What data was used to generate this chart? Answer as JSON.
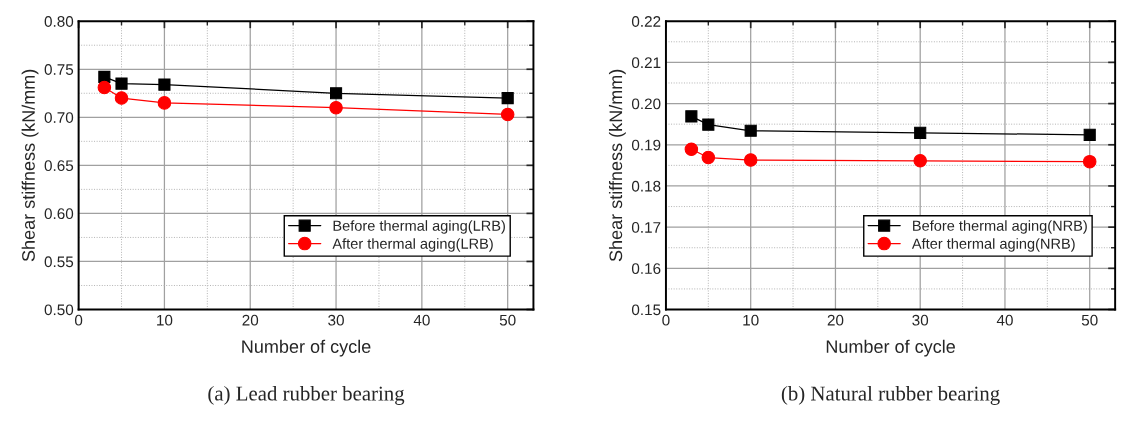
{
  "chart_data": [
    {
      "type": "line",
      "xlabel": "Number of cycle",
      "ylabel": "Shear stiffness (kN/mm)",
      "x": [
        3,
        5,
        10,
        30,
        50
      ],
      "series": [
        {
          "name": "Before thermal aging(LRB)",
          "color": "#000000",
          "marker": "square",
          "values": [
            0.742,
            0.735,
            0.734,
            0.725,
            0.72
          ]
        },
        {
          "name": "After thermal aging(LRB)",
          "color": "#ff0000",
          "marker": "circle",
          "values": [
            0.731,
            0.72,
            0.715,
            0.71,
            0.703
          ]
        }
      ],
      "xlim": [
        0,
        53
      ],
      "xticks": [
        0,
        10,
        20,
        30,
        40,
        50
      ],
      "ylim": [
        0.5,
        0.8
      ],
      "yticks": [
        {
          "value": 0.5,
          "label": "0.50"
        },
        {
          "value": 0.55,
          "label": "0.55"
        },
        {
          "value": 0.6,
          "label": "0.60"
        },
        {
          "value": 0.65,
          "label": "0.65"
        },
        {
          "value": 0.7,
          "label": "0.70"
        },
        {
          "value": 0.75,
          "label": "0.75"
        },
        {
          "value": 0.8,
          "label": "0.80"
        }
      ],
      "grid": true,
      "legend": "bottom right",
      "line_style": "solid",
      "annotations": [
        "(a) Lead rubber bearing"
      ]
    },
    {
      "type": "line",
      "xlabel": "Number of cycle",
      "ylabel": "Shear stiffness (kN/mm)",
      "x": [
        3,
        5,
        10,
        30,
        50
      ],
      "series": [
        {
          "name": "Before thermal aging(NRB)",
          "color": "#000000",
          "marker": "square",
          "values": [
            0.1969,
            0.1949,
            0.1934,
            0.1929,
            0.1924
          ]
        },
        {
          "name": "After thermal aging(NRB)",
          "color": "#ff0000",
          "marker": "circle",
          "values": [
            0.1889,
            0.1869,
            0.1863,
            0.1861,
            0.1859
          ]
        }
      ],
      "xlim": [
        0,
        53
      ],
      "xticks": [
        0,
        10,
        20,
        30,
        40,
        50
      ],
      "ylim": [
        0.15,
        0.22
      ],
      "yticks": [
        {
          "value": 0.15,
          "label": "0.15"
        },
        {
          "value": 0.16,
          "label": "0.16"
        },
        {
          "value": 0.17,
          "label": "0.17"
        },
        {
          "value": 0.18,
          "label": "0.18"
        },
        {
          "value": 0.19,
          "label": "0.19"
        },
        {
          "value": 0.2,
          "label": "0.20"
        },
        {
          "value": 0.21,
          "label": "0.21"
        },
        {
          "value": 0.22,
          "label": "0.22"
        }
      ],
      "grid": true,
      "legend": "bottom right",
      "line_style": "solid",
      "annotations": [
        "(b) Natural rubber bearing"
      ]
    }
  ]
}
